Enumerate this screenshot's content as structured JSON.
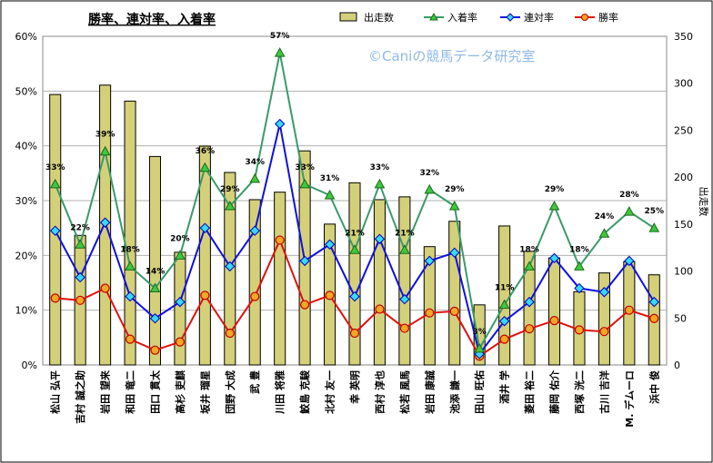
{
  "chart_data": {
    "type": "bar",
    "title": "勝率、連対率、入着率",
    "watermark": "©Caniの競馬データ研究室",
    "categories": [
      "松山 弘平",
      "吉村 誠之助",
      "岩田 望来",
      "和田 竜二",
      "田口 貫太",
      "高杉 吏麒",
      "坂井 瑠星",
      "団野 大成",
      "武 豊",
      "川田 将雅",
      "鮫島 克駿",
      "北村 友一",
      "幸 英明",
      "西村 淳也",
      "松若 風馬",
      "岩田 康誠",
      "池添 謙一",
      "田山 旺佑",
      "酒井 学",
      "菱田 裕二",
      "藤岡 佑介",
      "西塚 洸二",
      "古川 吉洋",
      "M. デムーロ",
      "浜中 俊"
    ],
    "left_axis": {
      "min": 0,
      "max": 0.6,
      "ticks": [
        "0%",
        "10%",
        "20%",
        "30%",
        "40%",
        "50%",
        "60%"
      ]
    },
    "right_axis": {
      "label": "出走数",
      "min": 0,
      "max": 350,
      "ticks": [
        "0",
        "50",
        "100",
        "150",
        "200",
        "250",
        "300",
        "350"
      ]
    },
    "legend": {
      "placement": "top",
      "items": [
        "出走数",
        "入着率",
        "連対率",
        "勝率"
      ]
    },
    "grid": true,
    "series": [
      {
        "name": "出走数",
        "type": "bar",
        "axis": "right",
        "color": "#d4d07a",
        "values": [
          288,
          138,
          298,
          281,
          222,
          120,
          233,
          205,
          176,
          184,
          228,
          150,
          194,
          176,
          179,
          126,
          153,
          64,
          148,
          121,
          114,
          78,
          98,
          110,
          96
        ]
      },
      {
        "name": "入着率",
        "type": "line",
        "axis": "left",
        "color": "#3a9a6a",
        "values": [
          0.33,
          0.22,
          0.39,
          0.18,
          0.14,
          0.2,
          0.36,
          0.29,
          0.34,
          0.57,
          0.33,
          0.31,
          0.21,
          0.33,
          0.21,
          0.32,
          0.29,
          0.03,
          0.11,
          0.18,
          0.29,
          0.18,
          0.24,
          0.28,
          0.25
        ],
        "labels": [
          "33%",
          "22%",
          "39%",
          "18%",
          "14%",
          "20%",
          "36%",
          "29%",
          "34%",
          "57%",
          "33%",
          "31%",
          "21%",
          "33%",
          "21%",
          "32%",
          "29%",
          "3%",
          "11%",
          "18%",
          "29%",
          "18%",
          "24%",
          "28%",
          "25%"
        ]
      },
      {
        "name": "連対率",
        "type": "line",
        "axis": "left",
        "color": "#1010e0",
        "values": [
          0.245,
          0.16,
          0.26,
          0.125,
          0.085,
          0.115,
          0.25,
          0.18,
          0.245,
          0.44,
          0.19,
          0.22,
          0.125,
          0.23,
          0.12,
          0.19,
          0.205,
          0.02,
          0.08,
          0.115,
          0.195,
          0.14,
          0.133,
          0.19,
          0.115
        ]
      },
      {
        "name": "勝率",
        "type": "line",
        "axis": "left",
        "color": "#e01010",
        "values": [
          0.122,
          0.118,
          0.14,
          0.047,
          0.027,
          0.042,
          0.127,
          0.058,
          0.125,
          0.228,
          0.11,
          0.127,
          0.058,
          0.102,
          0.067,
          0.095,
          0.098,
          0.016,
          0.047,
          0.066,
          0.081,
          0.064,
          0.061,
          0.1,
          0.085
        ]
      }
    ]
  }
}
